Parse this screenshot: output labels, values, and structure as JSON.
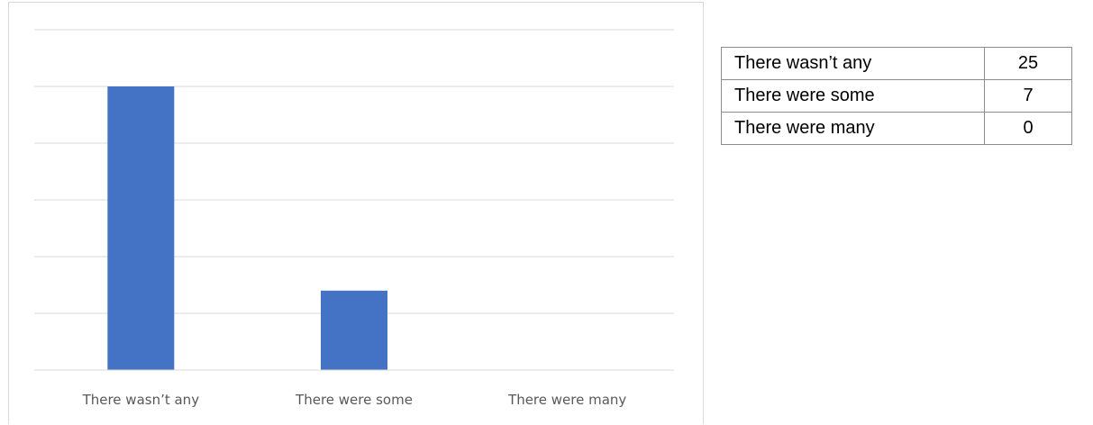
{
  "chart_data": {
    "type": "bar",
    "categories": [
      "There wasn’t any",
      "There were some",
      "There were many"
    ],
    "values": [
      25,
      7,
      0
    ],
    "title": "",
    "xlabel": "",
    "ylabel": "",
    "ylim": [
      0,
      30
    ],
    "y_tick_step": 5,
    "grid": true,
    "legend": "none",
    "bar_color": "#4472c4"
  },
  "table": {
    "rows": [
      {
        "label": "There wasn’t any",
        "value": "25"
      },
      {
        "label": "There were some",
        "value": "7"
      },
      {
        "label": "There were many",
        "value": "0"
      }
    ]
  }
}
